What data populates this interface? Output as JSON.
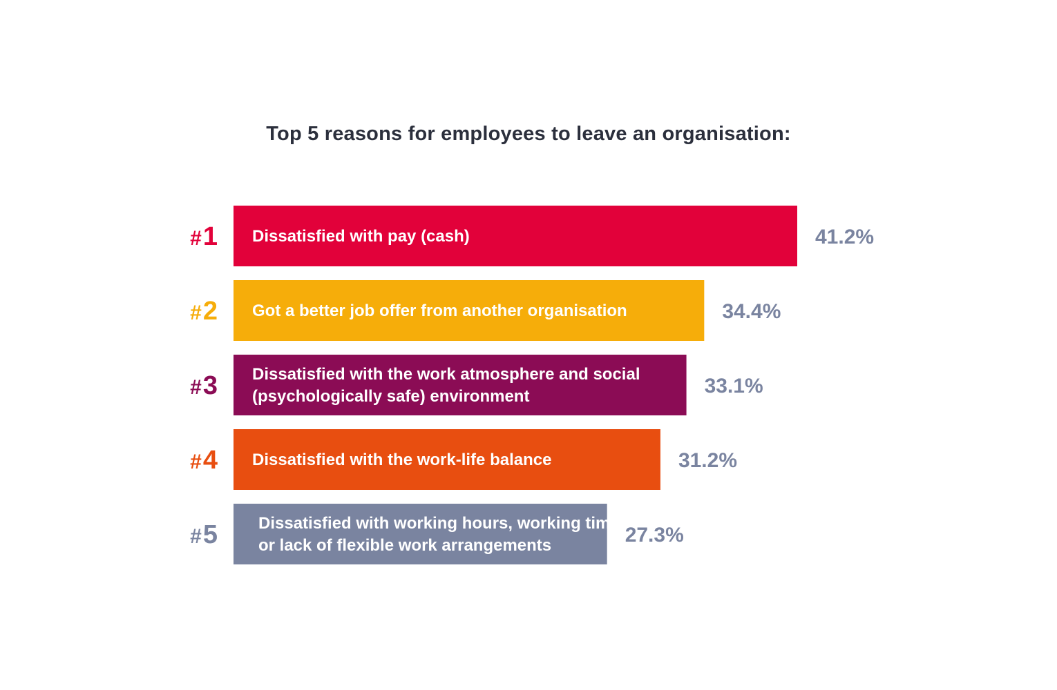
{
  "chart_data": {
    "type": "bar",
    "orientation": "horizontal",
    "title": "Top 5 reasons for employees to leave an organisation:",
    "value_suffix": "%",
    "items": [
      {
        "rank": "#1",
        "label_lines": [
          "Dissatisfied with pay (cash)"
        ],
        "value": 41.2,
        "value_label": "41.2%",
        "color": "#e2013a"
      },
      {
        "rank": "#2",
        "label_lines": [
          "Got a better job offer from another organisation"
        ],
        "value": 34.4,
        "value_label": "34.4%",
        "color": "#f6ad0a"
      },
      {
        "rank": "#3",
        "label_lines": [
          "Dissatisfied with the work atmosphere and social",
          "(psychologically safe) environment"
        ],
        "value": 33.1,
        "value_label": "33.1%",
        "color": "#8b0c55"
      },
      {
        "rank": "#4",
        "label_lines": [
          "Dissatisfied with the work-life balance"
        ],
        "value": 31.2,
        "value_label": "31.2%",
        "color": "#e84e10"
      },
      {
        "rank": "#5",
        "label_lines": [
          "Dissatisfied with working hours, working time",
          "or lack of flexible work arrangements"
        ],
        "value": 27.3,
        "value_label": "27.3%",
        "color": "#7a84a0"
      }
    ]
  }
}
